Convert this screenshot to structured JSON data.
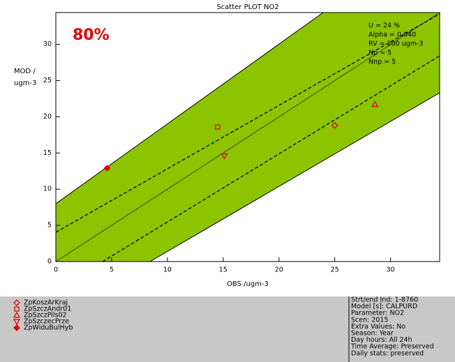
{
  "chart_data": {
    "type": "scatter",
    "title": "Scatter PLOT   NO2",
    "performance_label": "80%",
    "y_label": [
      "MOD /",
      "ugm-3"
    ],
    "x_label": "OBS /ugm-3",
    "stats": [
      "U = 24 %",
      "Alpha = 0.040",
      "RV = 200 ugm-3",
      "Np = 5",
      "Nnp = 5"
    ],
    "xlim": [
      0,
      34.4
    ],
    "ylim": [
      0,
      34.4
    ],
    "xticks": [
      0,
      5,
      10,
      15,
      20,
      25,
      30
    ],
    "yticks": [
      0,
      5,
      10,
      15,
      20,
      25,
      30
    ],
    "series": [
      {
        "name": "ZpKoszArKraj",
        "color": "#e00000",
        "marker": "diamond",
        "x": [
          25.0
        ],
        "values": [
          18.8
        ]
      },
      {
        "name": "ZpSzczAndr01",
        "color": "#e00000",
        "marker": "square",
        "x": [
          14.5
        ],
        "values": [
          18.6
        ]
      },
      {
        "name": "ZpSzczPils02",
        "color": "#e00000",
        "marker": "triangle-up",
        "x": [
          28.6
        ],
        "values": [
          21.7
        ]
      },
      {
        "name": "ZpSzczecPrze",
        "color": "#e00000",
        "marker": "triangle-down",
        "x": [
          15.1
        ],
        "values": [
          14.6
        ]
      },
      {
        "name": "ZpWiduBulHyb",
        "color": "#e00000",
        "marker": "filled-diamond",
        "x": [
          4.6
        ],
        "values": [
          12.9
        ]
      }
    ],
    "info": [
      "Strt/end Ind: 1-8760",
      "Model [s]: CALPURD",
      "Parameter: NO2",
      "Scen: 2015",
      "Extra Values: No",
      "Season: Year",
      "Day hours: All 24h",
      "Time Average: Preserved",
      "Daily stats: preserved"
    ]
  }
}
